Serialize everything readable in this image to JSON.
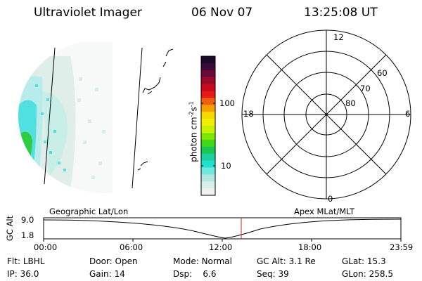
{
  "header": {
    "title": "Ultraviolet Imager",
    "date": "06 Nov 07",
    "time": "13:25:08 UT"
  },
  "colorbar": {
    "label": "photon cm",
    "label_sup1": "-2",
    "label_mid": "s",
    "label_sup2": "-1",
    "ticks": [
      "100",
      "10"
    ],
    "colors": [
      "#1a0a2a",
      "#3a0a3a",
      "#6a0a3a",
      "#9a0a2a",
      "#c80a1a",
      "#e81818",
      "#f06010",
      "#f8a000",
      "#f8d800",
      "#f0f000",
      "#c8f000",
      "#80e800",
      "#40d818",
      "#18c850",
      "#18d0a0",
      "#20e0d0",
      "#70e8e0",
      "#b0e8e0",
      "#d8ece8",
      "#f0f0f0"
    ]
  },
  "polar": {
    "mlt_labels": {
      "top": "12",
      "right": "6",
      "bottom": "0",
      "left": "18"
    },
    "lat_labels": [
      "60",
      "70",
      "80"
    ]
  },
  "altitude_panel": {
    "left_title": "Geographic Lat/Lon",
    "right_title": "Apex MLat/MLT",
    "axis_label": "GC Alt",
    "y_ticks": [
      "9.0",
      "1.8"
    ],
    "x_ticks": [
      "00:00",
      "06:00",
      "12:00",
      "18:00",
      "23:59"
    ],
    "marker_color": "#cc2222"
  },
  "info": {
    "row1": [
      {
        "label": "Flt:",
        "value": "LBHL"
      },
      {
        "label": "Door:",
        "value": "Open"
      },
      {
        "label": "Mode:",
        "value": "Normal"
      },
      {
        "label": "GC Alt:",
        "value": "3.1 Re"
      },
      {
        "label": "GLat:",
        "value": "15.3"
      }
    ],
    "row2": [
      {
        "label": "IP:",
        "value": "36.0"
      },
      {
        "label": "Gain:",
        "value": "14"
      },
      {
        "label": "Dsp:",
        "value": "6.6"
      },
      {
        "label": "Seq:",
        "value": "39"
      },
      {
        "label": "GLon:",
        "value": "258.5"
      }
    ]
  }
}
